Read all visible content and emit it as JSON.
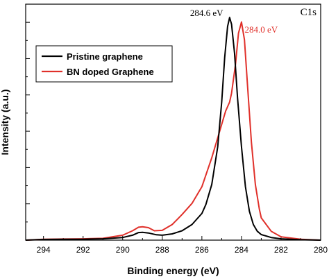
{
  "chart_data": {
    "type": "line",
    "title": "",
    "panel_label": "C1s",
    "xlabel": "Binding energy (eV)",
    "ylabel": "Intensity (a.u.)",
    "xlim": [
      294.9,
      280
    ],
    "ylim": [
      0,
      1.06
    ],
    "x_ticks": [
      294,
      292,
      290,
      288,
      286,
      284,
      282,
      280
    ],
    "y_tick_labels_shown": false,
    "grid": false,
    "legend_position": "upper-left",
    "series": [
      {
        "name": "Pristine graphene",
        "color": "#000000",
        "x": [
          294.9,
          294.0,
          293.0,
          292.0,
          291.0,
          290.0,
          289.5,
          289.2,
          289.0,
          288.7,
          288.3,
          288.0,
          287.5,
          287.0,
          286.5,
          286.0,
          285.8,
          285.5,
          285.2,
          285.0,
          284.85,
          284.7,
          284.6,
          284.5,
          284.35,
          284.2,
          284.0,
          283.8,
          283.6,
          283.4,
          283.2,
          283.0,
          282.5,
          282.0,
          281.0,
          280.0
        ],
        "y": [
          0.0,
          0.003,
          0.004,
          0.004,
          0.006,
          0.012,
          0.022,
          0.034,
          0.035,
          0.032,
          0.024,
          0.022,
          0.028,
          0.042,
          0.07,
          0.12,
          0.16,
          0.25,
          0.42,
          0.62,
          0.82,
          0.96,
          1.0,
          0.97,
          0.84,
          0.64,
          0.42,
          0.24,
          0.13,
          0.07,
          0.04,
          0.025,
          0.012,
          0.006,
          0.002,
          0.0
        ],
        "annotation": "284.6 eV"
      },
      {
        "name": "BN doped Graphene",
        "color": "#e0302a",
        "x": [
          294.9,
          294.0,
          293.0,
          292.0,
          291.0,
          290.0,
          289.5,
          289.2,
          289.0,
          288.7,
          288.4,
          288.0,
          287.5,
          287.0,
          286.5,
          286.0,
          285.5,
          285.2,
          285.0,
          284.8,
          284.6,
          284.5,
          284.3,
          284.15,
          284.0,
          283.85,
          283.7,
          283.5,
          283.3,
          283.1,
          283.0,
          282.5,
          282.0,
          281.0,
          280.0
        ],
        "y": [
          0.0,
          0.004,
          0.005,
          0.006,
          0.008,
          0.022,
          0.042,
          0.058,
          0.06,
          0.056,
          0.042,
          0.044,
          0.07,
          0.115,
          0.165,
          0.24,
          0.37,
          0.46,
          0.52,
          0.58,
          0.62,
          0.66,
          0.79,
          0.93,
          0.98,
          0.9,
          0.7,
          0.44,
          0.25,
          0.14,
          0.1,
          0.04,
          0.015,
          0.004,
          0.0
        ],
        "annotation": "284.0 eV"
      }
    ]
  }
}
